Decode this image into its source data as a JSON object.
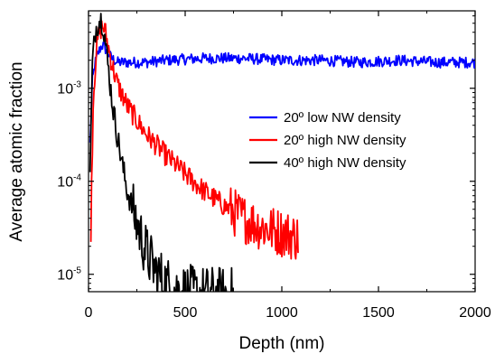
{
  "chart_data": {
    "type": "line",
    "title": "",
    "xlabel": "Depth (nm)",
    "ylabel": "Average atomic fraction",
    "x_scale": "linear",
    "y_scale": "log",
    "xlim": [
      0,
      2000
    ],
    "ylim": [
      6.5e-06,
      0.0068
    ],
    "x_ticks": [
      {
        "value": 0,
        "label": "0"
      },
      {
        "value": 500,
        "label": "500"
      },
      {
        "value": 1000,
        "label": "1000"
      },
      {
        "value": 1500,
        "label": "1500"
      },
      {
        "value": 2000,
        "label": "2000"
      }
    ],
    "y_ticks": [
      {
        "value": 1e-05,
        "base": "10",
        "exp": "-5"
      },
      {
        "value": 0.0001,
        "base": "10",
        "exp": "-4"
      },
      {
        "value": 0.001,
        "base": "10",
        "exp": "-3"
      }
    ],
    "grid": false,
    "legend_position": "center-right",
    "series": [
      {
        "name": "20º low NW density",
        "color": "#0000ff",
        "noise": 0.06,
        "x": [
          8,
          20,
          35,
          50,
          65,
          75,
          85,
          100,
          120,
          150,
          200,
          300,
          400,
          600,
          800,
          1000,
          1200,
          1400,
          1600,
          1800,
          2000
        ],
        "y": [
          0.00025,
          0.0012,
          0.0019,
          0.0024,
          0.0028,
          0.0029,
          0.0027,
          0.0024,
          0.0021,
          0.0019,
          0.0019,
          0.0019,
          0.002,
          0.0021,
          0.0021,
          0.002,
          0.002,
          0.0019,
          0.002,
          0.0019,
          0.0019
        ]
      },
      {
        "name": "20º high NW density",
        "color": "#ff0000",
        "noise": 0.12,
        "x": [
          12,
          25,
          40,
          55,
          70,
          80,
          90,
          100,
          125,
          150,
          200,
          250,
          300,
          400,
          500,
          600,
          700,
          800,
          900,
          1000,
          1050,
          1085
        ],
        "y": [
          4e-05,
          0.0008,
          0.0025,
          0.004,
          0.0046,
          0.0045,
          0.0038,
          0.0029,
          0.0017,
          0.0011,
          0.00065,
          0.00045,
          0.00032,
          0.00019,
          0.00012,
          7.8e-05,
          5.5e-05,
          4e-05,
          3.2e-05,
          2.8e-05,
          2.6e-05,
          2.5e-05
        ]
      },
      {
        "name": "40º high NW density",
        "color": "#000000",
        "noise": 0.14,
        "x": [
          8,
          20,
          35,
          50,
          65,
          75,
          85,
          100,
          125,
          150,
          175,
          200,
          250,
          300,
          350,
          400,
          450,
          500,
          550,
          600,
          650,
          700,
          750
        ],
        "y": [
          0.00012,
          0.0018,
          0.0042,
          0.0052,
          0.0055,
          0.005,
          0.0035,
          0.0018,
          0.00065,
          0.0003,
          0.00015,
          8e-05,
          3.5e-05,
          1.7e-05,
          1.05e-05,
          8e-06,
          6.8e-06,
          6.4e-06,
          6.2e-06,
          6.1e-06,
          6.1e-06,
          6e-06,
          6e-06
        ]
      }
    ]
  }
}
